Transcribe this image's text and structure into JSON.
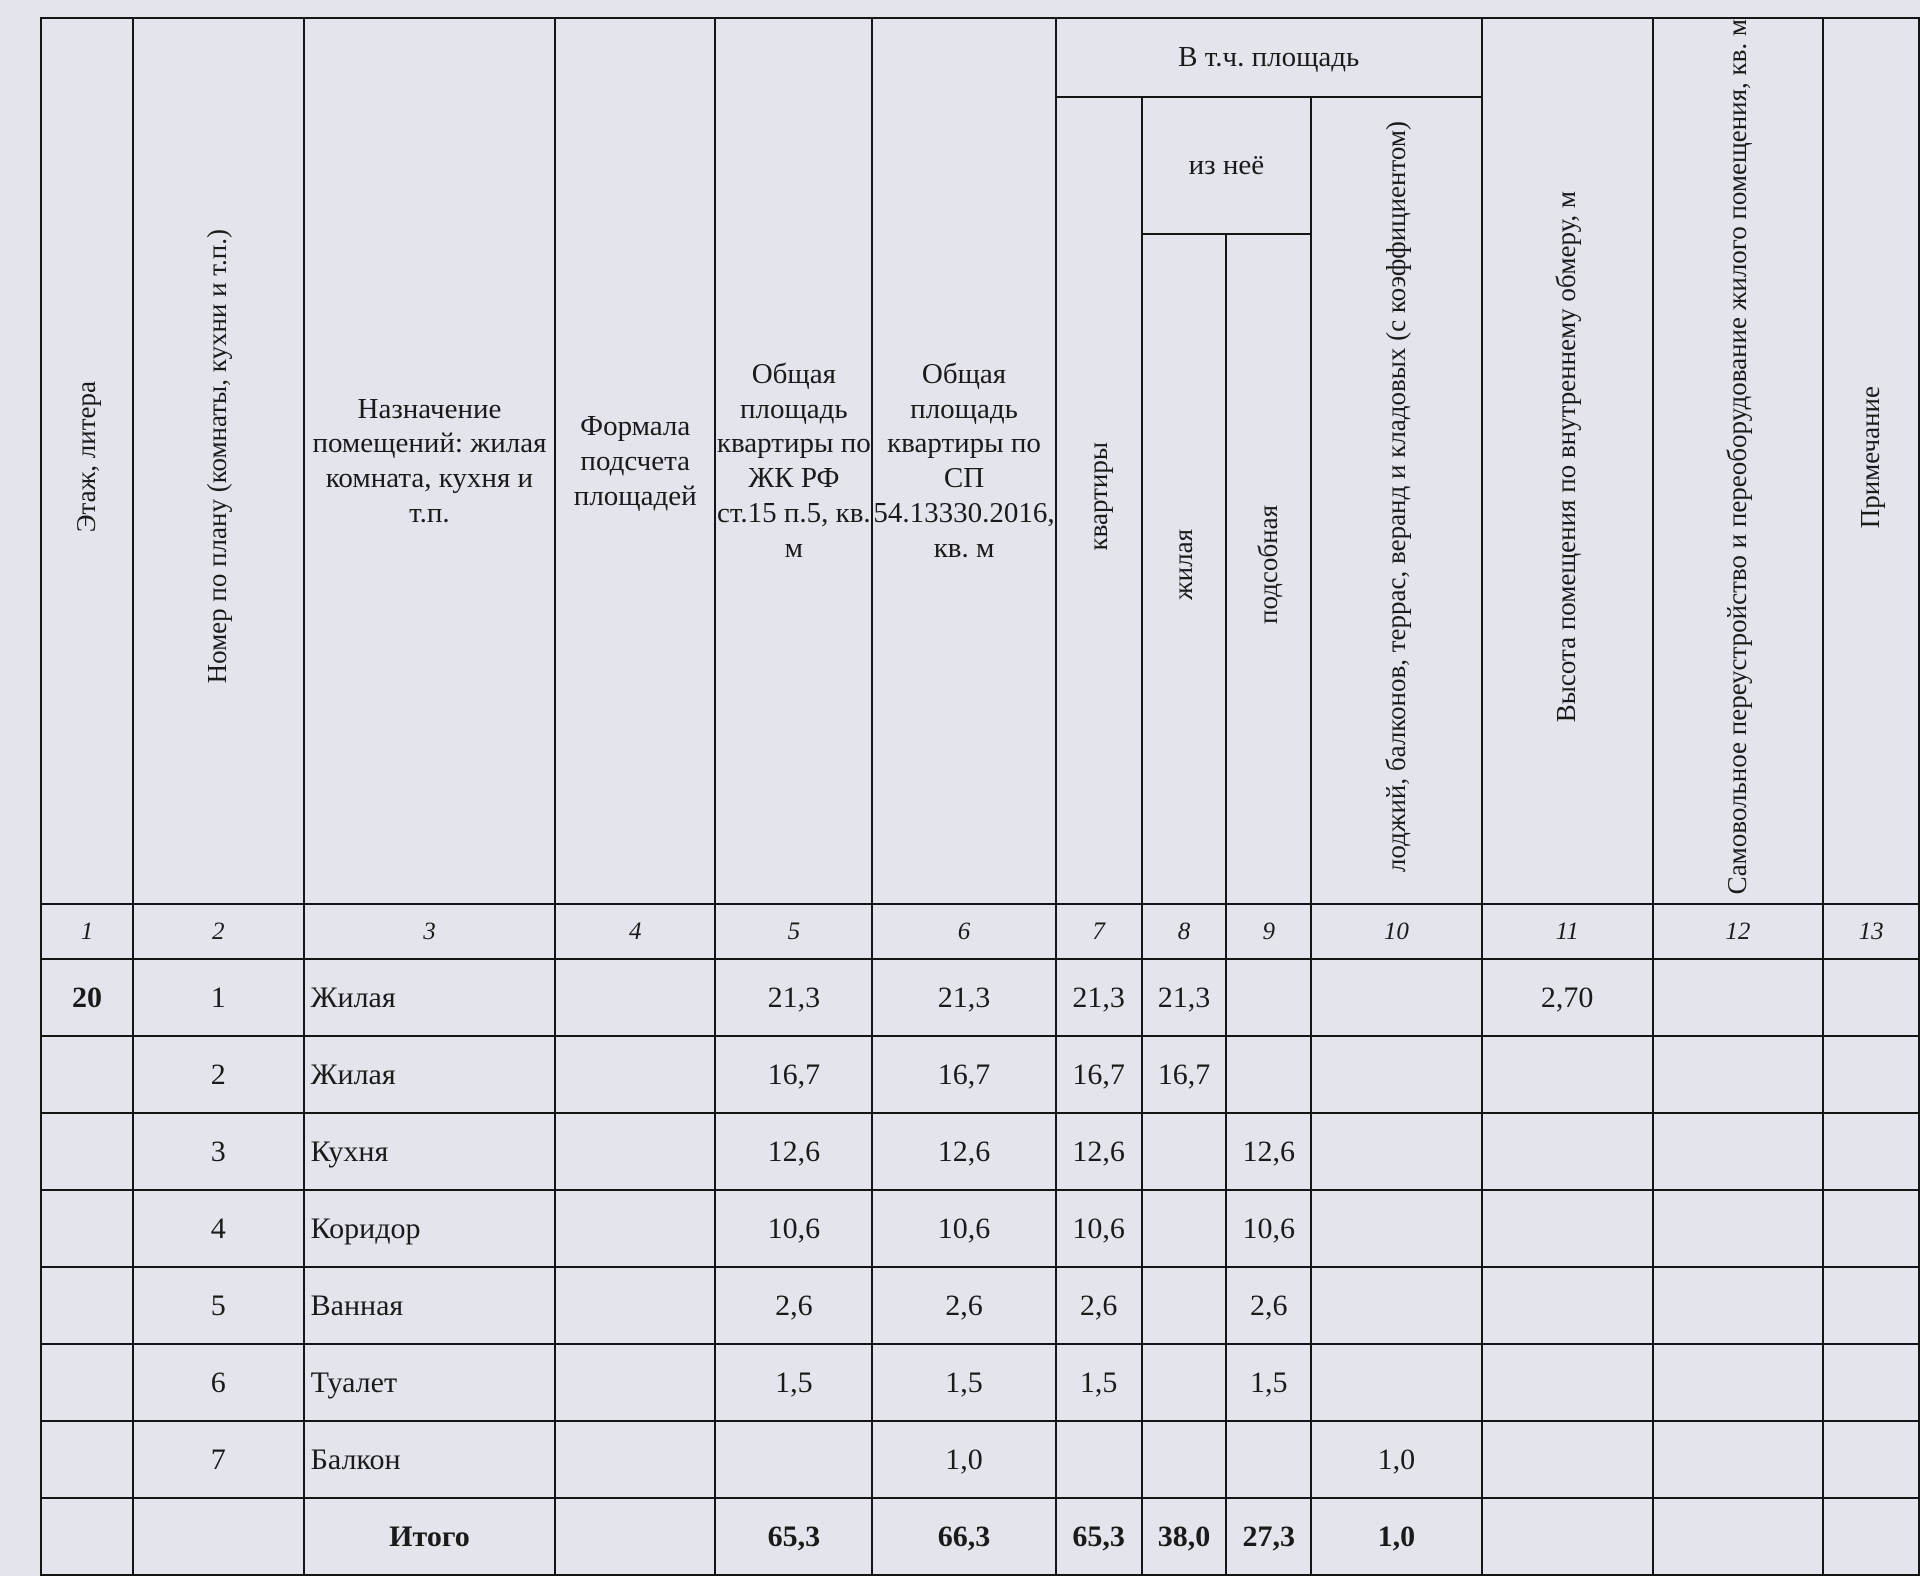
{
  "headers": {
    "floor": "Этаж, литера",
    "plan_no": "Номер по плану (комнаты, кухни и т.п.)",
    "purpose": "Назначение помещений: жилая комната, кухня и т.п.",
    "formula": "Формала подсчета площадей",
    "total_jk": "Общая площадь квартиры по ЖК РФ ст.15 п.5, кв. м",
    "total_sp": "Общая площадь квартиры по СП 54.13330.2016, кв. м",
    "incl_area": "В т.ч. площадь",
    "apartment": "квартиры",
    "of_which": "из неё",
    "living": "жилая",
    "auxiliary": "подсобная",
    "loggias": "лоджий, балконов, террас, веранд и кладовых (с коэффициентом)",
    "height": "Высота помещения по внутреннему обмеру, м",
    "unauthorized": "Самовольное переустройство и переоборудование жилого помещения, кв. м",
    "note": "Примечание"
  },
  "column_numbers": [
    "1",
    "2",
    "3",
    "4",
    "5",
    "6",
    "7",
    "8",
    "9",
    "10",
    "11",
    "12",
    "13"
  ],
  "rows": [
    [
      "20",
      "1",
      "Жилая",
      "",
      "21,3",
      "21,3",
      "21,3",
      "21,3",
      "",
      "",
      "2,70",
      "",
      ""
    ],
    [
      "",
      "2",
      "Жилая",
      "",
      "16,7",
      "16,7",
      "16,7",
      "16,7",
      "",
      "",
      "",
      "",
      ""
    ],
    [
      "",
      "3",
      "Кухня",
      "",
      "12,6",
      "12,6",
      "12,6",
      "",
      "12,6",
      "",
      "",
      "",
      ""
    ],
    [
      "",
      "4",
      "Коридор",
      "",
      "10,6",
      "10,6",
      "10,6",
      "",
      "10,6",
      "",
      "",
      "",
      ""
    ],
    [
      "",
      "5",
      "Ванная",
      "",
      "2,6",
      "2,6",
      "2,6",
      "",
      "2,6",
      "",
      "",
      "",
      ""
    ],
    [
      "",
      "6",
      "Туалет",
      "",
      "1,5",
      "1,5",
      "1,5",
      "",
      "1,5",
      "",
      "",
      "",
      ""
    ],
    [
      "",
      "7",
      "Балкон",
      "",
      "",
      "1,0",
      "",
      "",
      "",
      "1,0",
      "",
      "",
      ""
    ]
  ],
  "total": [
    "",
    "",
    "Итого",
    "",
    "65,3",
    "66,3",
    "65,3",
    "38,0",
    "27,3",
    "1,0",
    "",
    "",
    ""
  ]
}
